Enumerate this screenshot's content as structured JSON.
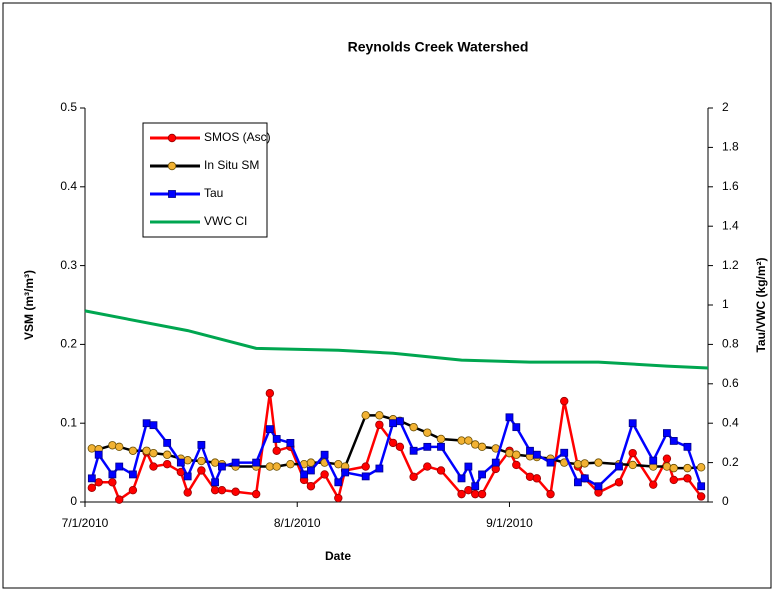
{
  "chart_data": {
    "type": "line",
    "title": "Reynolds Creek Watershed",
    "x_label": "Date",
    "y_label": "VSM (m³/m³)",
    "y2_label": "Tau/VWC (kg/m²)",
    "x": [
      "2010-07-02",
      "2010-07-03",
      "2010-07-05",
      "2010-07-06",
      "2010-07-08",
      "2010-07-10",
      "2010-07-11",
      "2010-07-13",
      "2010-07-15",
      "2010-07-16",
      "2010-07-18",
      "2010-07-20",
      "2010-07-21",
      "2010-07-23",
      "2010-07-26",
      "2010-07-28",
      "2010-07-29",
      "2010-07-31",
      "2010-08-02",
      "2010-08-03",
      "2010-08-05",
      "2010-08-07",
      "2010-08-08",
      "2010-08-11",
      "2010-08-13",
      "2010-08-15",
      "2010-08-16",
      "2010-08-18",
      "2010-08-20",
      "2010-08-22",
      "2010-08-25",
      "2010-08-26",
      "2010-08-27",
      "2010-08-28",
      "2010-08-30",
      "2010-09-01",
      "2010-09-02",
      "2010-09-04",
      "2010-09-05",
      "2010-09-07",
      "2010-09-09",
      "2010-09-11",
      "2010-09-12",
      "2010-09-14",
      "2010-09-17",
      "2010-09-19",
      "2010-09-22",
      "2010-09-24",
      "2010-09-25",
      "2010-09-27",
      "2010-09-29"
    ],
    "series": [
      {
        "name": "SMOS (Asc)",
        "color": "#ff0000",
        "marker": "circle",
        "marker_color": "#ff0000",
        "marker_edge": "#990000",
        "values": [
          0.018,
          0.025,
          0.025,
          0.003,
          0.015,
          0.063,
          0.045,
          0.048,
          0.038,
          0.012,
          0.04,
          0.015,
          0.015,
          0.013,
          0.01,
          0.138,
          0.065,
          0.07,
          0.028,
          0.02,
          0.035,
          0.005,
          0.04,
          0.045,
          0.098,
          0.075,
          0.07,
          0.032,
          0.045,
          0.04,
          0.01,
          0.015,
          0.01,
          0.01,
          0.042,
          0.065,
          0.047,
          0.032,
          0.03,
          0.01,
          0.128,
          0.045,
          0.03,
          0.012,
          0.025,
          0.062,
          0.022,
          0.055,
          0.028,
          0.03,
          0.007
        ]
      },
      {
        "name": "In Situ SM",
        "color": "#000000",
        "marker": "circle",
        "marker_color": "#f2b233",
        "marker_edge": "#6b4e00",
        "values": [
          0.068,
          0.067,
          0.072,
          0.07,
          0.065,
          0.065,
          0.062,
          0.06,
          0.055,
          0.053,
          0.052,
          0.05,
          0.048,
          0.045,
          0.045,
          0.045,
          0.045,
          0.048,
          0.048,
          0.05,
          0.05,
          0.048,
          0.045,
          0.11,
          0.11,
          0.105,
          0.103,
          0.095,
          0.088,
          0.08,
          0.078,
          0.078,
          0.073,
          0.07,
          0.068,
          0.062,
          0.06,
          0.058,
          0.057,
          0.055,
          0.05,
          0.048,
          0.049,
          0.05,
          0.048,
          0.047,
          0.045,
          0.045,
          0.043,
          0.043,
          0.044
        ]
      },
      {
        "name": "Tau",
        "color": "#0000ff",
        "marker": "square",
        "marker_color": "#0000ff",
        "marker_edge": "#00008b",
        "axis": "y2",
        "values": [
          0.12,
          0.24,
          0.14,
          0.18,
          0.14,
          0.4,
          0.39,
          0.3,
          0.2,
          0.13,
          0.29,
          0.1,
          0.18,
          0.2,
          0.2,
          0.37,
          0.32,
          0.3,
          0.14,
          0.16,
          0.24,
          0.1,
          0.15,
          0.13,
          0.17,
          0.4,
          0.41,
          0.26,
          0.28,
          0.28,
          0.12,
          0.18,
          0.08,
          0.14,
          0.2,
          0.43,
          0.38,
          0.26,
          0.24,
          0.2,
          0.25,
          0.1,
          0.12,
          0.08,
          0.18,
          0.4,
          0.21,
          0.35,
          0.31,
          0.28,
          0.08
        ]
      },
      {
        "name": "VWC CI",
        "color": "#00a650",
        "axis": "y2",
        "x": [
          "2010-07-01",
          "2010-07-16",
          "2010-07-26",
          "2010-08-07",
          "2010-08-15",
          "2010-08-25",
          "2010-09-04",
          "2010-09-14",
          "2010-09-24",
          "2010-09-30"
        ],
        "values": [
          0.97,
          0.87,
          0.78,
          0.77,
          0.755,
          0.72,
          0.71,
          0.71,
          0.69,
          0.68
        ]
      }
    ],
    "xlim": [
      "2010-07-01",
      "2010-09-30"
    ],
    "xticks": [
      {
        "value": "2010-07-01",
        "label": "7/1/2010"
      },
      {
        "value": "2010-08-01",
        "label": "8/1/2010"
      },
      {
        "value": "2010-09-01",
        "label": "9/1/2010"
      }
    ],
    "ylim": [
      0,
      0.5
    ],
    "yticks": [
      0,
      0.1,
      0.2,
      0.3,
      0.4,
      0.5
    ],
    "y2lim": [
      0,
      2
    ],
    "y2ticks": [
      0,
      0.2,
      0.4,
      0.6,
      0.8,
      1,
      1.2,
      1.4,
      1.6,
      1.8,
      2
    ],
    "grid": false
  }
}
